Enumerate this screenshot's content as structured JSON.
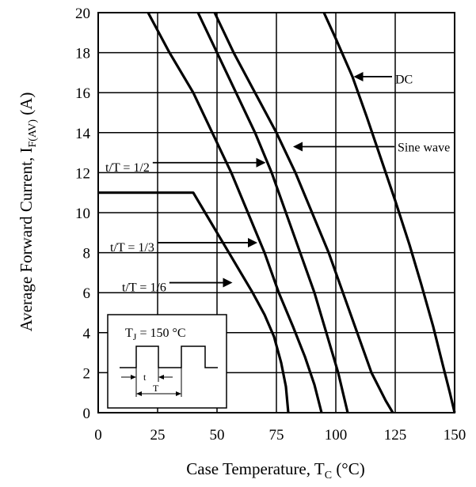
{
  "chart_data": {
    "type": "line",
    "title": "",
    "xlabel": {
      "main": "Case Temperature, T",
      "sub": "C",
      "unit": " (°C)"
    },
    "ylabel": {
      "main": "Average Forward Current, I",
      "sub": "F(AV)",
      "unit": " (A)"
    },
    "xlim": [
      0,
      150
    ],
    "ylim": [
      0,
      20
    ],
    "xticks": [
      0,
      25,
      50,
      75,
      100,
      125,
      150
    ],
    "yticks": [
      0,
      2,
      4,
      6,
      8,
      10,
      12,
      14,
      16,
      18,
      20
    ],
    "grid": true,
    "series": [
      {
        "name": "t/T = 1/6",
        "points": [
          [
            0,
            11
          ],
          [
            40,
            11
          ],
          [
            45,
            10
          ],
          [
            50,
            9
          ],
          [
            55,
            8
          ],
          [
            60,
            7
          ],
          [
            65,
            6
          ],
          [
            70,
            4.9
          ],
          [
            74,
            3.8
          ],
          [
            77,
            2.5
          ],
          [
            79,
            1.3
          ],
          [
            80,
            0
          ]
        ]
      },
      {
        "name": "t/T = 1/3",
        "points": [
          [
            21,
            20
          ],
          [
            30,
            18
          ],
          [
            40,
            16
          ],
          [
            48,
            14
          ],
          [
            56,
            12
          ],
          [
            63,
            10
          ],
          [
            70,
            8
          ],
          [
            76,
            6
          ],
          [
            82,
            4.3
          ],
          [
            87,
            2.8
          ],
          [
            91,
            1.4
          ],
          [
            94,
            0
          ]
        ]
      },
      {
        "name": "t/T = 1/2",
        "points": [
          [
            42,
            20
          ],
          [
            50,
            18
          ],
          [
            58,
            16
          ],
          [
            66,
            14
          ],
          [
            73,
            12
          ],
          [
            79,
            10
          ],
          [
            85,
            8
          ],
          [
            91,
            6
          ],
          [
            96,
            4
          ],
          [
            101,
            2
          ],
          [
            103,
            1
          ],
          [
            105,
            0
          ]
        ]
      },
      {
        "name": "Sine wave",
        "points": [
          [
            49,
            20
          ],
          [
            57,
            18
          ],
          [
            66,
            16
          ],
          [
            75,
            14
          ],
          [
            83,
            12
          ],
          [
            90,
            10
          ],
          [
            97,
            8
          ],
          [
            103,
            6
          ],
          [
            109,
            4
          ],
          [
            115,
            2
          ],
          [
            121,
            0.6
          ],
          [
            124,
            0
          ]
        ]
      },
      {
        "name": "DC",
        "points": [
          [
            95,
            20
          ],
          [
            100,
            18.7
          ],
          [
            107,
            16.8
          ],
          [
            113,
            14.8
          ],
          [
            119,
            12.7
          ],
          [
            125,
            10.6
          ],
          [
            131,
            8.4
          ],
          [
            136,
            6.4
          ],
          [
            141,
            4.3
          ],
          [
            145,
            2.4
          ],
          [
            148,
            1
          ],
          [
            150,
            0
          ]
        ]
      }
    ],
    "annotations": [
      {
        "text": "DC",
        "x": 125,
        "y": 16.7,
        "arrow_to": [
          107.5,
          16.8
        ]
      },
      {
        "text": "Sine wave",
        "x": 126,
        "y": 13.3,
        "arrow_to": [
          82,
          13.3
        ]
      },
      {
        "text": "t/T = 1/2",
        "x": 3,
        "y": 12.3,
        "arrow_to": [
          70.5,
          12.5
        ]
      },
      {
        "text": "t/T = 1/3",
        "x": 5,
        "y": 8.3,
        "arrow_to": [
          67,
          8.5
        ]
      },
      {
        "text": "t/T = 1/6",
        "x": 10,
        "y": 6.3,
        "arrow_to": [
          56.5,
          6.5
        ]
      }
    ],
    "inset": {
      "label": "T",
      "label_sub": "J",
      "label_rest": " = 150 °C",
      "t_label": "t",
      "T_label": "T"
    }
  }
}
